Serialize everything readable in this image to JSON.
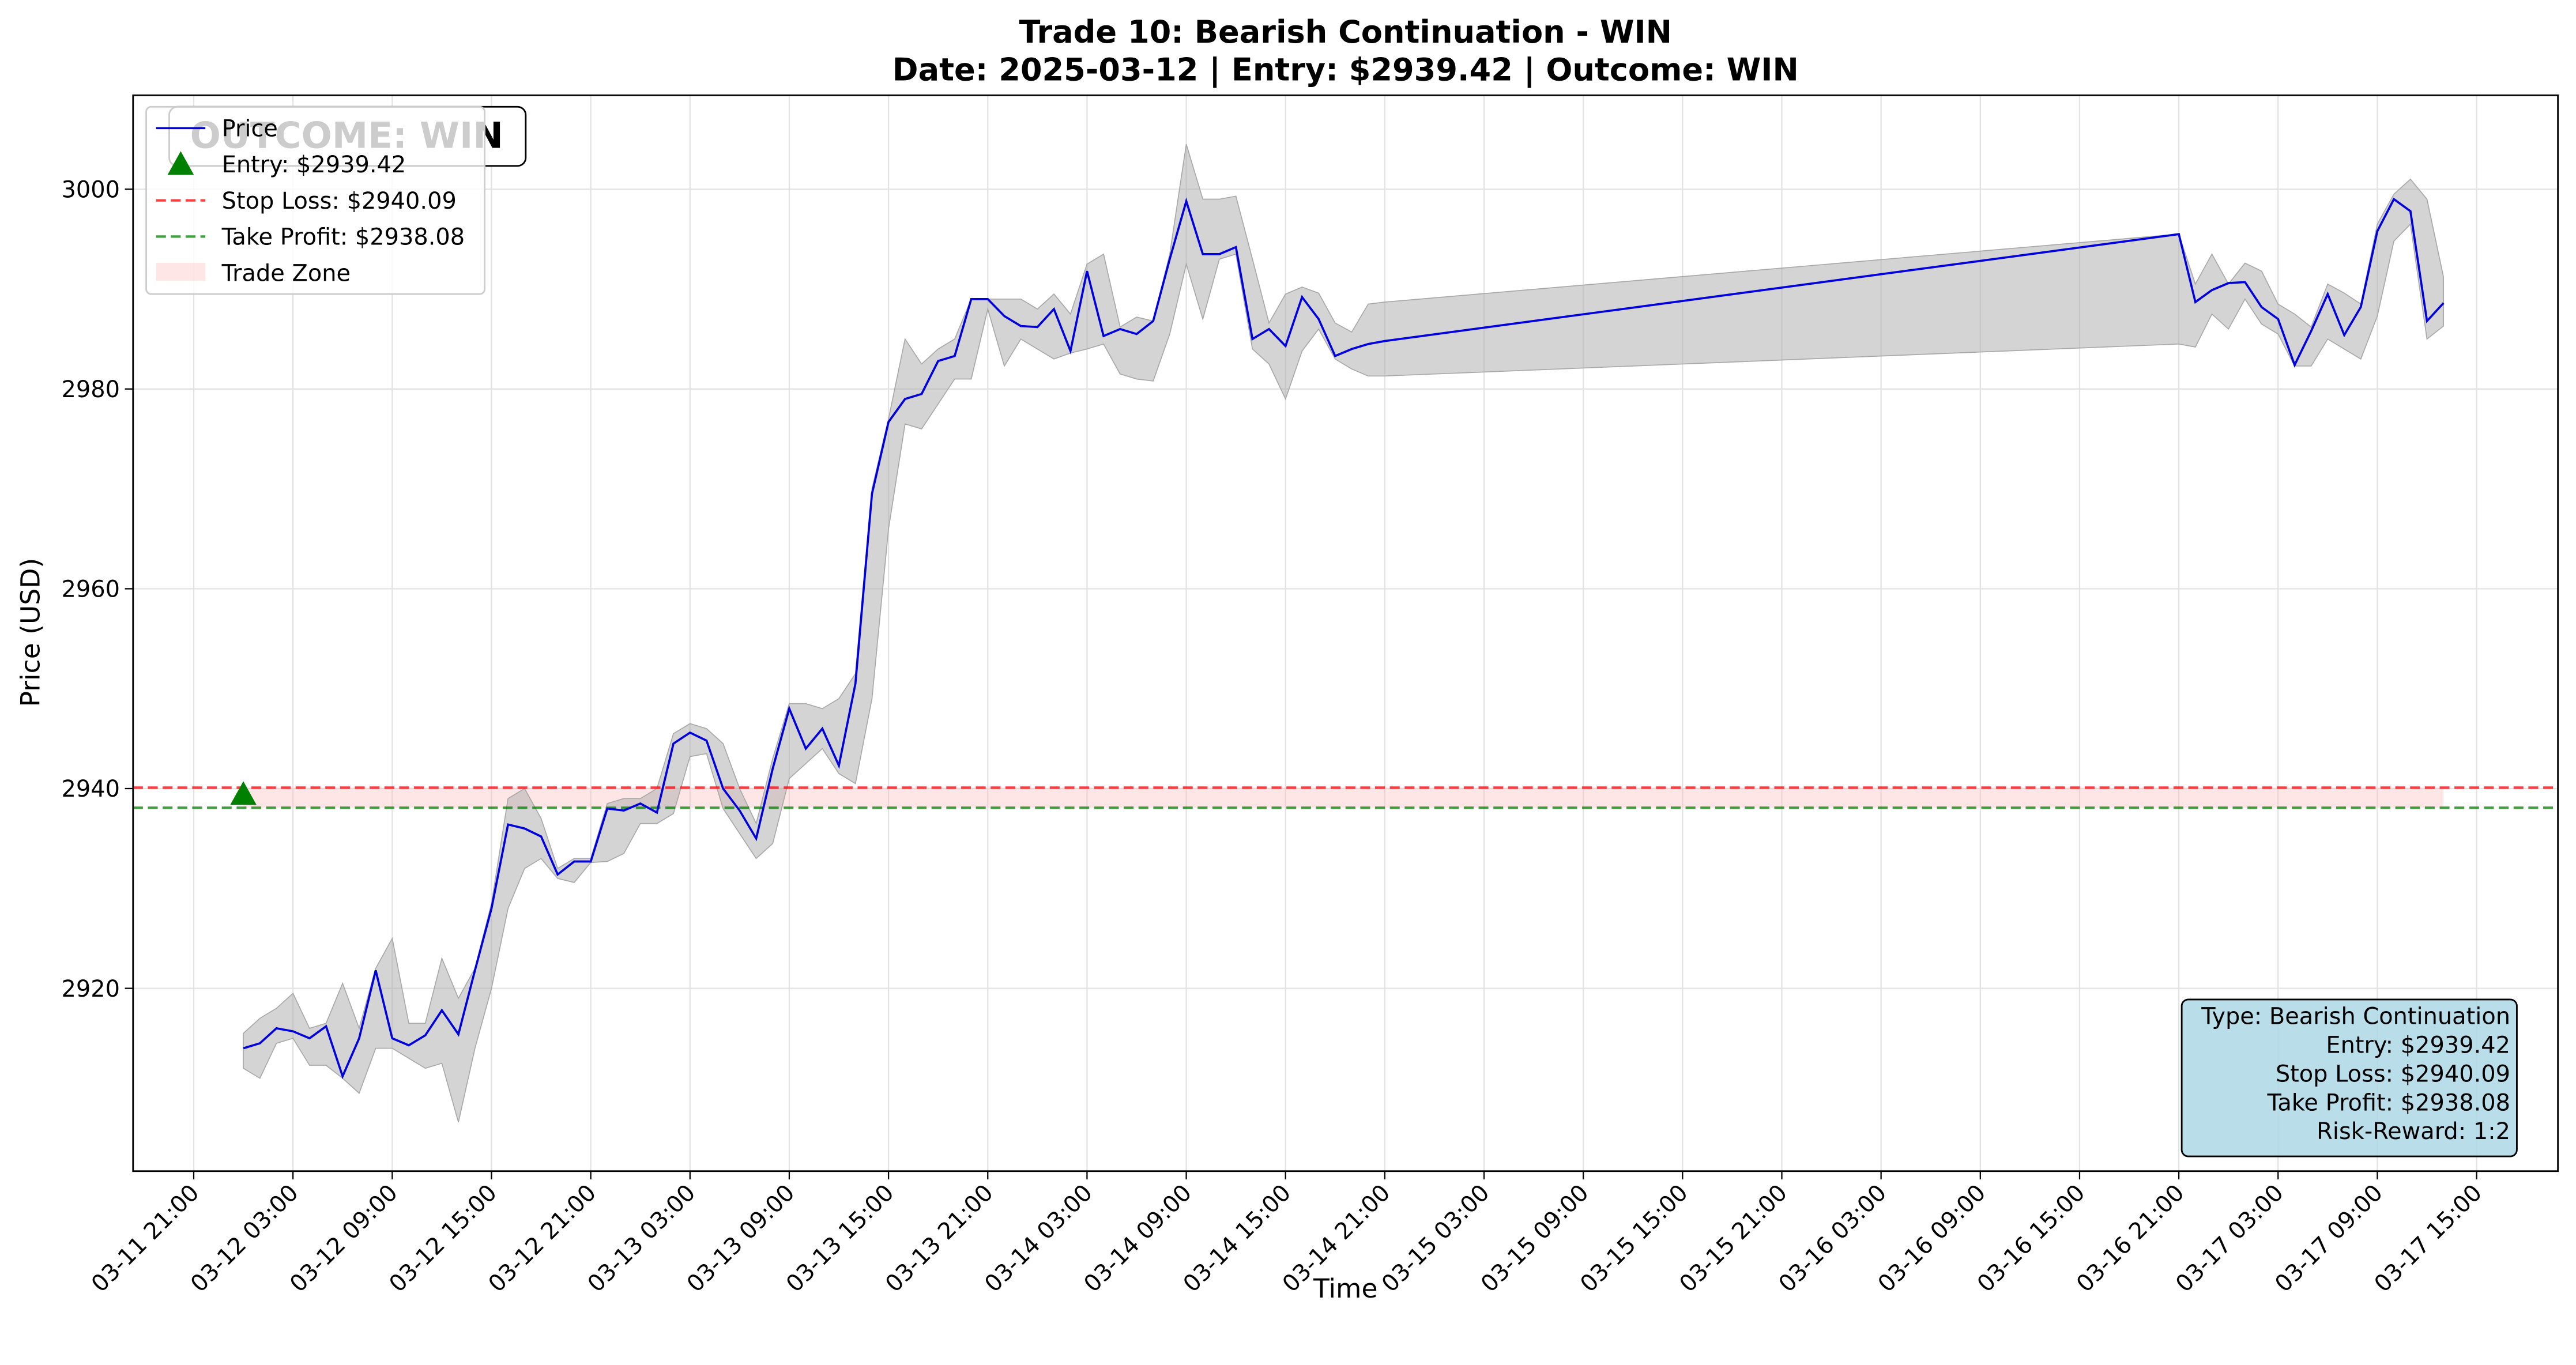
{
  "chart_data": {
    "type": "line",
    "title": "Trade 10: Bearish Continuation - WIN",
    "subtitle": "Date: 2025-03-12 | Entry: $2939.42 | Outcome: WIN",
    "xlabel": "Time",
    "ylabel": "Price (USD)",
    "x": [
      "03-12 00:00",
      "03-12 01:00",
      "03-12 02:00",
      "03-12 03:00",
      "03-12 04:00",
      "03-12 05:00",
      "03-12 06:00",
      "03-12 07:00",
      "03-12 08:00",
      "03-12 09:00",
      "03-12 10:00",
      "03-12 11:00",
      "03-12 12:00",
      "03-12 13:00",
      "03-12 14:00",
      "03-12 15:00",
      "03-12 16:00",
      "03-12 17:00",
      "03-12 18:00",
      "03-12 19:00",
      "03-12 20:00",
      "03-12 21:00",
      "03-12 22:00",
      "03-12 23:00",
      "03-13 00:00",
      "03-13 01:00",
      "03-13 02:00",
      "03-13 03:00",
      "03-13 04:00",
      "03-13 05:00",
      "03-13 06:00",
      "03-13 07:00",
      "03-13 08:00",
      "03-13 09:00",
      "03-13 10:00",
      "03-13 11:00",
      "03-13 12:00",
      "03-13 13:00",
      "03-13 14:00",
      "03-13 15:00",
      "03-13 16:00",
      "03-13 17:00",
      "03-13 18:00",
      "03-13 19:00",
      "03-13 20:00",
      "03-13 21:00",
      "03-13 22:00",
      "03-13 23:00",
      "03-14 00:00",
      "03-14 01:00",
      "03-14 02:00",
      "03-14 03:00",
      "03-14 04:00",
      "03-14 05:00",
      "03-14 06:00",
      "03-14 07:00",
      "03-14 08:00",
      "03-14 09:00",
      "03-14 10:00",
      "03-14 11:00",
      "03-14 12:00",
      "03-14 13:00",
      "03-14 14:00",
      "03-14 15:00",
      "03-14 16:00",
      "03-14 17:00",
      "03-14 18:00",
      "03-14 19:00",
      "03-14 20:00",
      "03-14 21:00",
      "03-16 21:00",
      "03-16 22:00",
      "03-16 23:00",
      "03-17 00:00",
      "03-17 01:00",
      "03-17 02:00",
      "03-17 03:00",
      "03-17 04:00",
      "03-17 05:00",
      "03-17 06:00",
      "03-17 07:00",
      "03-17 08:00",
      "03-17 09:00",
      "03-17 10:00",
      "03-17 11:00",
      "03-17 12:00",
      "03-17 13:00"
    ],
    "series": [
      {
        "name": "Price",
        "color": "#0000dd",
        "values": [
          2914,
          2914.5,
          2916,
          2915.7,
          2915,
          2916.2,
          2911.2,
          2915,
          2921.8,
          2915,
          2914.3,
          2915.3,
          2917.8,
          2915.4,
          2921.8,
          2928,
          2936.4,
          2936,
          2935.2,
          2931.4,
          2932.7,
          2932.7,
          2938,
          2937.8,
          2938.5,
          2937.6,
          2944.5,
          2945.6,
          2944.8,
          2940,
          2937.8,
          2935,
          2942,
          2948,
          2944,
          2946,
          2942.3,
          2950.5,
          2969.5,
          2976.7,
          2979,
          2979.5,
          2982.8,
          2983.3,
          2989,
          2989,
          2987.3,
          2986.3,
          2986.2,
          2988,
          2983.8,
          2991.8,
          2985.3,
          2986,
          2985.5,
          2986.8,
          2993,
          2998.8,
          2993.5,
          2993.5,
          2994.2,
          2985,
          2986,
          2984.3,
          2989.2,
          2987,
          2983.3,
          2984,
          2984.5,
          2984.8,
          2995.5,
          2988.7,
          2989.9,
          2990.6,
          2990.7,
          2988.2,
          2987,
          2982.4,
          2985.8,
          2989.5,
          2985.4,
          2988.2,
          2995.8,
          2999,
          2997.8,
          2986.8,
          2988.6
        ]
      }
    ],
    "band": {
      "color": "#a9a9a9",
      "upper": [
        2915.5,
        2917,
        2918,
        2919.5,
        2916,
        2916.5,
        2920.5,
        2916,
        2922,
        2925,
        2916.5,
        2916.5,
        2923,
        2919,
        2922,
        2928.5,
        2939,
        2940,
        2937,
        2932,
        2933,
        2933,
        2938.5,
        2939,
        2939,
        2940,
        2945.5,
        2946.5,
        2946,
        2944.5,
        2940,
        2936.5,
        2943,
        2948.5,
        2948.5,
        2948,
        2949,
        2951.5,
        2970,
        2977,
        2985,
        2982.5,
        2984,
        2985,
        2989,
        2989,
        2989,
        2989,
        2988,
        2989.5,
        2987.5,
        2992.5,
        2993.5,
        2986.2,
        2987.2,
        2986.8,
        2993.5,
        3004.5,
        2999,
        2999,
        2999.3,
        2993,
        2986.6,
        2989.5,
        2990.2,
        2989.6,
        2986.6,
        2985.7,
        2988.5,
        2988.7,
        2995.5,
        2990.5,
        2993.5,
        2990.5,
        2992.6,
        2991.8,
        2988.5,
        2987.5,
        2986.2,
        2990.5,
        2989.6,
        2988.5,
        2996.5,
        2999.5,
        3001,
        2999,
        2991.2
      ],
      "lower": [
        2912,
        2911,
        2914.5,
        2915,
        2912.3,
        2912.3,
        2911,
        2909.5,
        2914,
        2914,
        2913,
        2912,
        2912.5,
        2906.6,
        2914,
        2920,
        2928,
        2932,
        2933,
        2931,
        2930.6,
        2932.6,
        2932.7,
        2933.5,
        2936.5,
        2936.5,
        2937.5,
        2943.2,
        2943.5,
        2938,
        2935.5,
        2933,
        2934.5,
        2941,
        2942.5,
        2944,
        2941.5,
        2940.5,
        2949,
        2966,
        2976.5,
        2976,
        2978.5,
        2981,
        2981,
        2988,
        2982.3,
        2985,
        2984,
        2983,
        2983.6,
        2984,
        2984.5,
        2981.5,
        2981,
        2980.8,
        2985.5,
        2992.5,
        2987,
        2993,
        2993.5,
        2984,
        2982.5,
        2979,
        2983.8,
        2986,
        2983,
        2982,
        2981.3,
        2981.3,
        2984.5,
        2984.2,
        2987.5,
        2986,
        2989,
        2986.5,
        2985.5,
        2982.3,
        2982.3,
        2985,
        2984,
        2983,
        2987.3,
        2994.8,
        2996.5,
        2985,
        2986.3
      ]
    },
    "markers": [
      {
        "name": "Entry: $2939.42",
        "x": "03-12 00:00",
        "value": 2939.42,
        "color": "#008000"
      }
    ],
    "hlines": [
      {
        "name": "Stop Loss: $2940.09",
        "value": 2940.09,
        "color": "#ff0000"
      },
      {
        "name": "Take Profit: $2938.08",
        "value": 2938.08,
        "color": "#008000"
      }
    ],
    "zones": [
      {
        "name": "Trade Zone",
        "color": "#ffb6b6",
        "x": [
          "03-12 00:00",
          "03-17 13:00"
        ],
        "y": [
          2938.08,
          2940.09
        ]
      }
    ],
    "outcome_label": "OUTCOME: WIN",
    "info_box": [
      "Type: Bearish Continuation",
      "Entry: $2939.42",
      "Stop Loss: $2940.09",
      "Take Profit: $2938.08",
      "Risk-Reward: 1:2"
    ],
    "xlim": [
      "03-11 17:20",
      "03-17 19:55"
    ],
    "xticks": [
      "03-11 21:00",
      "03-12 03:00",
      "03-12 09:00",
      "03-12 15:00",
      "03-12 21:00",
      "03-13 03:00",
      "03-13 09:00",
      "03-13 15:00",
      "03-13 21:00",
      "03-14 03:00",
      "03-14 09:00",
      "03-14 15:00",
      "03-14 21:00",
      "03-15 03:00",
      "03-15 09:00",
      "03-15 15:00",
      "03-15 21:00",
      "03-16 03:00",
      "03-16 09:00",
      "03-16 15:00",
      "03-16 21:00",
      "03-17 03:00",
      "03-17 09:00",
      "03-17 15:00"
    ],
    "ylim": [
      2901.7,
      3009.4
    ],
    "yticks": [
      2920,
      2940,
      2960,
      2980,
      3000
    ],
    "grid": true,
    "legend": "upper left"
  }
}
